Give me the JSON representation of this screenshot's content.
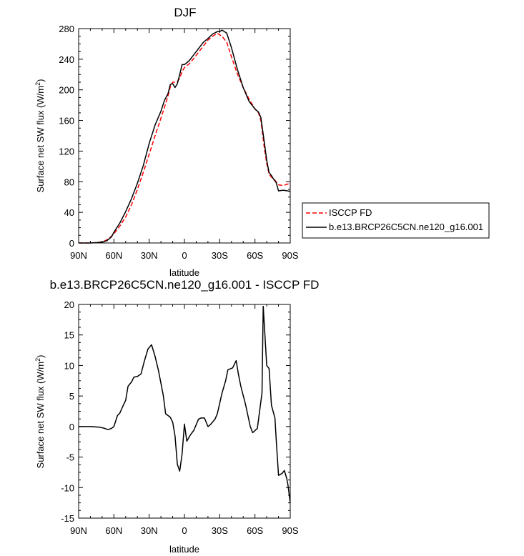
{
  "chart_data": [
    {
      "type": "line",
      "title": "DJF",
      "xlabel": "latitude",
      "ylabel": "Surface net SW flux (W/m",
      "ylabel_sup": "2",
      "ylabel_end": ")",
      "xlim": [
        90,
        -90
      ],
      "ylim": [
        0,
        280
      ],
      "xtick_values": [
        90,
        60,
        30,
        0,
        -30,
        -60,
        -90
      ],
      "xtick_labels": [
        "90N",
        "60N",
        "30N",
        "0",
        "30S",
        "60S",
        "90S"
      ],
      "ytick_values": [
        0,
        40,
        80,
        120,
        160,
        200,
        240,
        280
      ],
      "ytick_labels": [
        "0",
        "40",
        "80",
        "120",
        "160",
        "200",
        "240",
        "280"
      ],
      "x": [
        90,
        85,
        80,
        75,
        70,
        66,
        62,
        60,
        55,
        50,
        45,
        40,
        35,
        30,
        25,
        20,
        17,
        14,
        12,
        10,
        8,
        6,
        4,
        2,
        0,
        -4,
        -8,
        -12,
        -16,
        -20,
        -24,
        -28,
        -30,
        -32,
        -36,
        -40,
        -45,
        -50,
        -55,
        -60,
        -63,
        -65,
        -68,
        -70,
        -72,
        -74,
        -76,
        -78,
        -80,
        -84,
        -88,
        -90
      ],
      "series": [
        {
          "name": "ISCCP FD",
          "color": "#ff0000",
          "dash": true,
          "values": [
            0,
            0,
            0,
            0.5,
            1.5,
            4,
            9,
            12,
            22,
            34,
            50,
            70,
            92,
            116,
            140,
            163,
            177,
            192,
            204,
            210,
            210,
            211,
            215,
            224,
            229,
            234,
            241,
            249,
            257,
            265,
            270,
            274,
            272,
            270,
            262,
            243,
            221,
            203,
            188,
            175,
            170,
            160,
            124,
            104,
            90,
            86,
            84,
            80,
            76,
            75,
            77,
            78
          ]
        },
        {
          "name": "b.e13.BRCP26C5CN.ne120_g16.001",
          "color": "#000000",
          "dash": false,
          "values": [
            0,
            0,
            0,
            0.5,
            1,
            3,
            8,
            14,
            26,
            41,
            58,
            78,
            101,
            130,
            154,
            172,
            186,
            195,
            207,
            208,
            203,
            208,
            220,
            233,
            233,
            238,
            246,
            254,
            262,
            267,
            273,
            276,
            276,
            278,
            274,
            255,
            227,
            203,
            185,
            175,
            171,
            164,
            131,
            108,
            92,
            88,
            83,
            79,
            68,
            69,
            68,
            67
          ]
        }
      ],
      "legend": {
        "placement": "right",
        "entries": [
          "ISCCP FD",
          "b.e13.BRCP26C5CN.ne120_g16.001"
        ]
      }
    },
    {
      "type": "line",
      "title": "b.e13.BRCP26C5CN.ne120_g16.001 - ISCCP FD",
      "xlabel": "latitude",
      "ylabel": "Surface net SW flux (W/m",
      "ylabel_sup": "2",
      "ylabel_end": ")",
      "xlim": [
        90,
        -90
      ],
      "ylim": [
        -15,
        20
      ],
      "xtick_values": [
        90,
        60,
        30,
        0,
        -30,
        -60,
        -90
      ],
      "xtick_labels": [
        "90N",
        "60N",
        "30N",
        "0",
        "30S",
        "60S",
        "90S"
      ],
      "ytick_values": [
        -15,
        -10,
        -5,
        0,
        5,
        10,
        15,
        20
      ],
      "ytick_labels": [
        "-15",
        "-10",
        "-5",
        "0",
        "5",
        "10",
        "15",
        "20"
      ],
      "x": [
        90,
        80,
        72,
        68,
        65,
        62,
        60,
        57,
        55,
        52,
        50,
        48,
        45,
        43,
        40,
        37,
        34,
        31,
        28,
        25,
        22,
        20,
        18,
        16,
        12,
        10,
        8,
        6,
        4,
        2,
        0,
        -2,
        -5,
        -8,
        -10,
        -12,
        -14,
        -17,
        -20,
        -22,
        -26,
        -28,
        -32,
        -35,
        -37,
        -41,
        -44,
        -46,
        -48,
        -52,
        -56,
        -58,
        -62,
        -66,
        -67,
        -70,
        -72,
        -74,
        -77,
        -78,
        -80,
        -83,
        -85,
        -87,
        -88,
        -89,
        -90
      ],
      "series": [
        {
          "name": "b.e13.BRCP26C5CN.ne120_g16.001 - ISCCP FD",
          "color": "#000000",
          "dash": false,
          "values": [
            0,
            0,
            -0.1,
            -0.3,
            -0.5,
            -0.3,
            0,
            1.8,
            2.2,
            3.5,
            4.3,
            6.6,
            7.3,
            8.1,
            8.2,
            8.6,
            10.8,
            12.7,
            13.4,
            11.5,
            9.1,
            7.1,
            5.1,
            2.1,
            1.5,
            0.7,
            -1.5,
            -6.2,
            -7.3,
            -4.5,
            0.4,
            -2.4,
            -1.4,
            -0.6,
            0.3,
            1.2,
            1.4,
            1.4,
            0,
            0.3,
            1.2,
            2.1,
            5.5,
            7.5,
            9.3,
            9.6,
            10.8,
            8.5,
            6.6,
            3.6,
            0,
            -1,
            -0.3,
            5.5,
            19.7,
            10,
            9.5,
            3.5,
            1.4,
            -2,
            -8,
            -7.7,
            -7.2,
            -8.5,
            -9.5,
            -11,
            -12.5
          ]
        }
      ]
    }
  ]
}
